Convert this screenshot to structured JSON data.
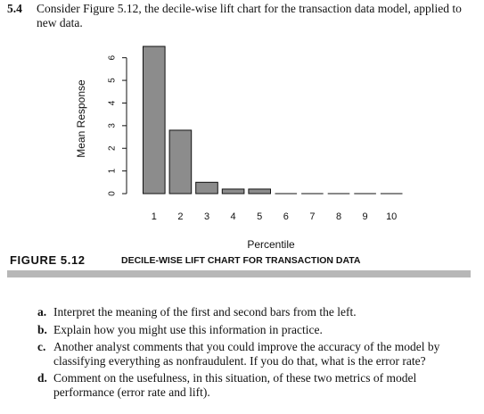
{
  "problem": {
    "number": "5.4",
    "text": "Consider Figure 5.12, the decile-wise lift chart for the transaction data model, applied to new data."
  },
  "figure": {
    "label": "FIGURE 5.12",
    "title": "DECILE-WISE LIFT CHART FOR TRANSACTION DATA"
  },
  "chart_data": {
    "type": "bar",
    "title": "",
    "xlabel": "Percentile",
    "ylabel": "Mean Response",
    "categories": [
      "1",
      "2",
      "3",
      "4",
      "5",
      "6",
      "7",
      "8",
      "9",
      "10"
    ],
    "values": [
      6.5,
      2.8,
      0.5,
      0.2,
      0.2,
      0,
      0,
      0,
      0,
      0
    ],
    "ylim": [
      0,
      6.5
    ],
    "yticks": [
      "0",
      "1",
      "2",
      "3",
      "4",
      "5",
      "6"
    ],
    "bar_color": "#8c8c8c",
    "grid": false,
    "legend": "none"
  },
  "questions": [
    {
      "label": "a.",
      "text": "Interpret the meaning of the first and second bars from the left."
    },
    {
      "label": "b.",
      "text": "Explain how you might use this information in practice."
    },
    {
      "label": "c.",
      "text": "Another analyst comments that you could improve the accuracy of the model by classifying everything as nonfraudulent. If you do that, what is the error rate?"
    },
    {
      "label": "d.",
      "text": "Comment on the usefulness, in this situation, of these two metrics of model performance (error rate and lift)."
    }
  ]
}
